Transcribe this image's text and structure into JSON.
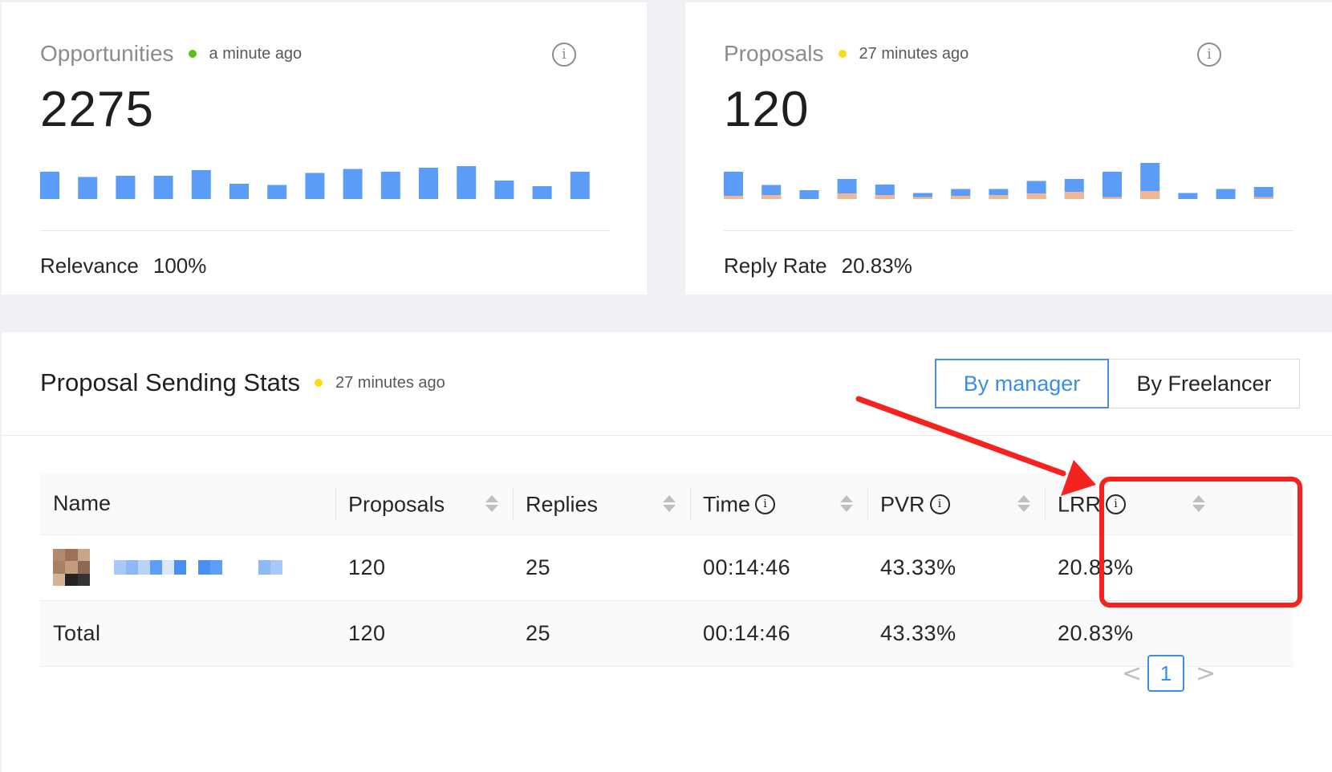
{
  "opportunities": {
    "title": "Opportunities",
    "status_color": "#52c41a",
    "updated": "a minute ago",
    "value": "2275",
    "footer_label": "Relevance",
    "footer_value": "100%",
    "info_icon": "info-circle-icon",
    "bars": [
      0.68,
      0.55,
      0.58,
      0.58,
      0.72,
      0.38,
      0.35,
      0.65,
      0.75,
      0.68,
      0.78,
      0.82,
      0.46,
      0.32,
      0.68
    ]
  },
  "proposals": {
    "title": "Proposals",
    "status_color": "#fadb14",
    "updated": "27 minutes ago",
    "value": "120",
    "footer_label": "Reply Rate",
    "footer_value": "20.83%",
    "info_icon": "info-circle-icon",
    "bars_total": [
      0.68,
      0.35,
      0.22,
      0.5,
      0.36,
      0.15,
      0.25,
      0.25,
      0.45,
      0.5,
      0.68,
      0.9,
      0.15,
      0.25,
      0.3
    ],
    "bars_replies": [
      0.08,
      0.1,
      0.0,
      0.14,
      0.1,
      0.05,
      0.08,
      0.1,
      0.14,
      0.18,
      0.05,
      0.2,
      0.0,
      0.0,
      0.05
    ],
    "bar_colors": {
      "proposals": "#5b9cf8",
      "replies": "#eeb896"
    }
  },
  "stats": {
    "title": "Proposal Sending Stats",
    "status_color": "#fadb14",
    "updated": "27 minutes ago",
    "toggle": {
      "by_manager": "By manager",
      "by_freelancer": "By Freelancer",
      "selected": "By manager"
    },
    "columns": [
      "Name",
      "Proposals",
      "Replies",
      "Time",
      "PVR",
      "LRR"
    ],
    "rows": [
      {
        "name": "",
        "proposals": "120",
        "replies": "25",
        "time": "00:14:46",
        "pvr": "43.33%",
        "lrr": "20.83%"
      }
    ],
    "total": {
      "name": "Total",
      "proposals": "120",
      "replies": "25",
      "time": "00:14:46",
      "pvr": "43.33%",
      "lrr": "20.83%"
    },
    "pagination": {
      "prev": "<",
      "current": "1",
      "next": ">"
    }
  },
  "annotation": {
    "color": "#f5231f"
  },
  "colors": {
    "accent": "#3a8ee6",
    "bar": "#5b9cf8"
  }
}
